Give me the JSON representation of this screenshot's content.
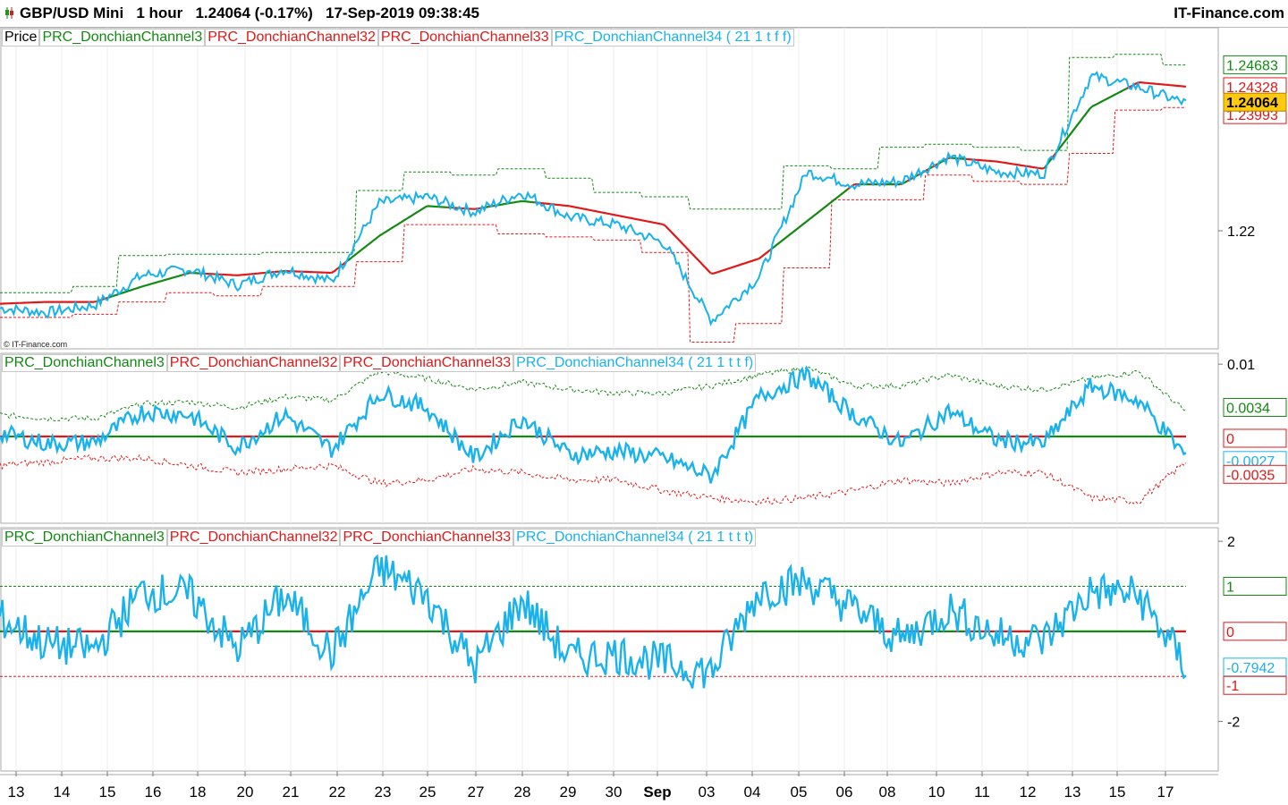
{
  "header": {
    "symbol": "GBP/USD Mini",
    "timeframe": "1 hour",
    "last": "1.24064 (-0.17%)",
    "datetime": "17-Sep-2019 09:38:45",
    "brand": "IT-Finance.com",
    "watermark": "© IT-Finance.com"
  },
  "legends": {
    "price": [
      "Price",
      "PRC_DonchianChannel3",
      "PRC_DonchianChannel32",
      "PRC_DonchianChannel33",
      "PRC_DonchianChannel34 ( 21 1 t f f)"
    ],
    "ind1": [
      "PRC_DonchianChannel3",
      "PRC_DonchianChannel32",
      "PRC_DonchianChannel33",
      "PRC_DonchianChannel34 ( 21 1 t t f)"
    ],
    "ind2": [
      "PRC_DonchianChannel3",
      "PRC_DonchianChannel32",
      "PRC_DonchianChannel33",
      "PRC_DonchianChannel34 ( 21 1 t t t)"
    ]
  },
  "colors": {
    "price_line": "#1ab2ec",
    "mid_green": "#128a12",
    "mid_red": "#e21818",
    "upper_band": "#128a12",
    "lower_band": "#e21818",
    "last_price_bg": "#ffc90e"
  },
  "chart_data": [
    {
      "type": "line",
      "panel": "price",
      "x": [
        "13",
        "14",
        "15",
        "16",
        "18",
        "20",
        "21",
        "22",
        "23",
        "25",
        "27",
        "28",
        "29",
        "30",
        "Sep",
        "03",
        "04",
        "05",
        "06",
        "08",
        "10",
        "11",
        "12",
        "13",
        "15",
        "17"
      ],
      "ylim": [
        1.2015,
        1.2505
      ],
      "yticks": [
        1.22
      ],
      "tick_labels": [
        "1.22"
      ],
      "axis_labels": {
        "upper": "1.24683",
        "last": "1.24064",
        "mid": "1.24328",
        "lower": "1.23993"
      },
      "series": [
        {
          "values": [
            1.2075,
            1.2068,
            1.208,
            1.2128,
            1.2138,
            1.2112,
            1.2138,
            1.2118,
            1.2245,
            1.2255,
            1.223,
            1.2262,
            1.2222,
            1.221,
            1.218,
            1.2055,
            1.2125,
            1.2295,
            1.2275,
            1.228,
            1.232,
            1.2295,
            1.2292,
            1.245,
            1.2432,
            1.2406
          ]
        },
        {
          "values": [
            1.2082,
            1.2085,
            1.2085,
            1.211,
            1.2132,
            1.2128,
            1.2135,
            1.2132,
            1.2192,
            1.224,
            1.2235,
            1.2248,
            1.224,
            1.2225,
            1.221,
            1.213,
            1.2155,
            1.2215,
            1.2275,
            1.2275,
            1.2318,
            1.2312,
            1.23,
            1.24,
            1.244,
            1.2433
          ]
        },
        {
          "values": [
            1.21,
            1.21,
            1.211,
            1.216,
            1.2162,
            1.2162,
            1.2165,
            1.2165,
            1.2265,
            1.2295,
            1.229,
            1.23,
            1.2285,
            1.2262,
            1.2255,
            1.2235,
            1.2235,
            1.2305,
            1.23,
            1.2335,
            1.234,
            1.2335,
            1.233,
            1.248,
            1.2485,
            1.2468
          ]
        },
        {
          "values": [
            1.206,
            1.206,
            1.2065,
            1.2085,
            1.21,
            1.2095,
            1.211,
            1.211,
            1.215,
            1.221,
            1.221,
            1.2195,
            1.219,
            1.2185,
            1.2165,
            1.202,
            1.205,
            1.214,
            1.225,
            1.225,
            1.229,
            1.228,
            1.2275,
            1.2325,
            1.2395,
            1.2399
          ]
        }
      ]
    },
    {
      "type": "line",
      "panel": "indicator1",
      "x": [
        "13",
        "14",
        "15",
        "16",
        "18",
        "20",
        "21",
        "22",
        "23",
        "25",
        "27",
        "28",
        "29",
        "30",
        "Sep",
        "03",
        "04",
        "05",
        "06",
        "08",
        "10",
        "11",
        "12",
        "13",
        "15",
        "17"
      ],
      "ylim": [
        -0.012,
        0.0115
      ],
      "yticks": [
        0.01,
        0
      ],
      "tick_labels": [
        "0.01",
        "0"
      ],
      "axis_labels": {
        "upper": "0.0034",
        "zero": "0",
        "last": "-0.0027",
        "lower": "-0.0035"
      },
      "series": [
        {
          "values": [
            0.0005,
            -0.001,
            -0.0008,
            0.0035,
            0.003,
            -0.0015,
            0.003,
            -0.0018,
            0.006,
            0.004,
            -0.003,
            0.0025,
            -0.0025,
            -0.002,
            -0.003,
            -0.0055,
            0.0055,
            0.0085,
            0.003,
            -0.001,
            0.0035,
            -0.0005,
            -0.001,
            0.007,
            0.005,
            -0.0027
          ]
        },
        {
          "values": [
            0.003,
            0.0025,
            0.0025,
            0.0045,
            0.0048,
            0.004,
            0.0055,
            0.005,
            0.009,
            0.008,
            0.0065,
            0.0075,
            0.0065,
            0.006,
            0.006,
            0.007,
            0.0085,
            0.0095,
            0.007,
            0.007,
            0.0085,
            0.007,
            0.0065,
            0.008,
            0.009,
            0.0034
          ]
        },
        {
          "values": [
            -0.004,
            -0.0035,
            -0.003,
            -0.003,
            -0.004,
            -0.005,
            -0.0045,
            -0.004,
            -0.0065,
            -0.006,
            -0.0045,
            -0.005,
            -0.006,
            -0.006,
            -0.0075,
            -0.0085,
            -0.009,
            -0.0085,
            -0.0075,
            -0.006,
            -0.0065,
            -0.005,
            -0.005,
            -0.0085,
            -0.009,
            -0.0035
          ]
        }
      ]
    },
    {
      "type": "line",
      "panel": "indicator2",
      "x": [
        "13",
        "14",
        "15",
        "16",
        "18",
        "20",
        "21",
        "22",
        "23",
        "25",
        "27",
        "28",
        "29",
        "30",
        "Sep",
        "03",
        "04",
        "05",
        "06",
        "08",
        "10",
        "11",
        "12",
        "13",
        "15",
        "17"
      ],
      "ylim": [
        -3.1,
        2.3
      ],
      "yticks": [
        2,
        -2
      ],
      "tick_labels": [
        "2",
        "-2"
      ],
      "axis_labels": {
        "upper": "1",
        "zero": "0",
        "last": "-0.7942",
        "lower": "-1"
      },
      "series": [
        {
          "values": [
            0.3,
            -0.3,
            -0.4,
            0.9,
            0.8,
            -0.4,
            0.8,
            -0.5,
            1.4,
            0.8,
            -0.8,
            0.7,
            -0.6,
            -0.5,
            -0.7,
            -0.9,
            0.9,
            1.1,
            0.5,
            -0.2,
            0.5,
            -0.1,
            -0.2,
            0.9,
            0.8,
            -0.79
          ]
        }
      ]
    }
  ],
  "date_axis": [
    "13",
    "14",
    "15",
    "16",
    "18",
    "20",
    "21",
    "22",
    "23",
    "25",
    "27",
    "28",
    "29",
    "30",
    "Sep",
    "03",
    "04",
    "05",
    "06",
    "08",
    "10",
    "11",
    "12",
    "13",
    "15",
    "17"
  ]
}
